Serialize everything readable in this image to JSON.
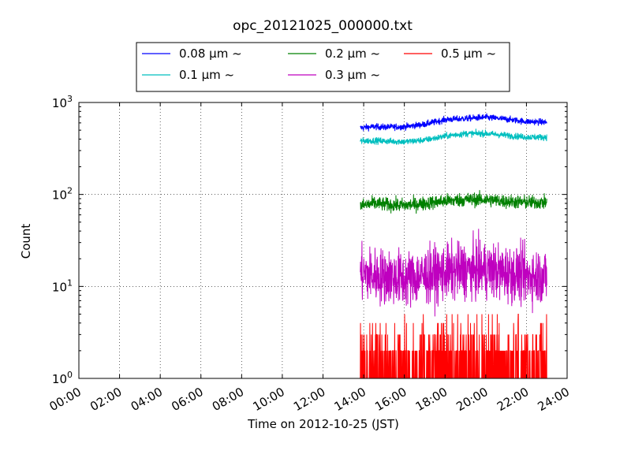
{
  "chart_data": {
    "type": "line",
    "title": "opc_20121025_000000.txt",
    "xlabel": "Time on 2012-10-25 (JST)",
    "ylabel": "Count",
    "y_scale": "log",
    "ylim": [
      1,
      1000
    ],
    "y_ticks": [
      {
        "base": "10",
        "exp": "0",
        "value": 1
      },
      {
        "base": "10",
        "exp": "1",
        "value": 10
      },
      {
        "base": "10",
        "exp": "2",
        "value": 100
      },
      {
        "base": "10",
        "exp": "3",
        "value": 1000
      }
    ],
    "xlim": [
      "00:00",
      "24:00"
    ],
    "x_ticks": [
      "00:00",
      "02:00",
      "04:00",
      "06:00",
      "08:00",
      "10:00",
      "12:00",
      "14:00",
      "16:00",
      "18:00",
      "20:00",
      "22:00",
      "24:00"
    ],
    "grid": true,
    "legend_position": "top-center",
    "x": [
      "13:50",
      "14:30",
      "15:00",
      "16:00",
      "17:00",
      "18:00",
      "19:00",
      "20:00",
      "21:00",
      "22:00",
      "23:00"
    ],
    "series": [
      {
        "name": "0.08 μm ~",
        "color": "#0000ff",
        "values": [
          530,
          545,
          540,
          545,
          580,
          650,
          670,
          690,
          660,
          620,
          610
        ]
      },
      {
        "name": "0.1 μm ~",
        "color": "#00bfbf",
        "values": [
          380,
          385,
          380,
          375,
          390,
          430,
          460,
          460,
          440,
          420,
          420
        ]
      },
      {
        "name": "0.2 μm ~",
        "color": "#008000",
        "values": [
          75,
          80,
          78,
          76,
          80,
          85,
          88,
          88,
          84,
          82,
          82
        ]
      },
      {
        "name": "0.3 μm ~",
        "color": "#bf00bf",
        "values": [
          14,
          13,
          13,
          12,
          13,
          14,
          15,
          15,
          14,
          13,
          13
        ]
      },
      {
        "name": "0.5 μm ~",
        "color": "#ff0000",
        "values": [
          1.5,
          1.5,
          1.4,
          1.4,
          1.5,
          1.7,
          1.8,
          1.7,
          1.6,
          1.6,
          1.5
        ]
      }
    ]
  }
}
